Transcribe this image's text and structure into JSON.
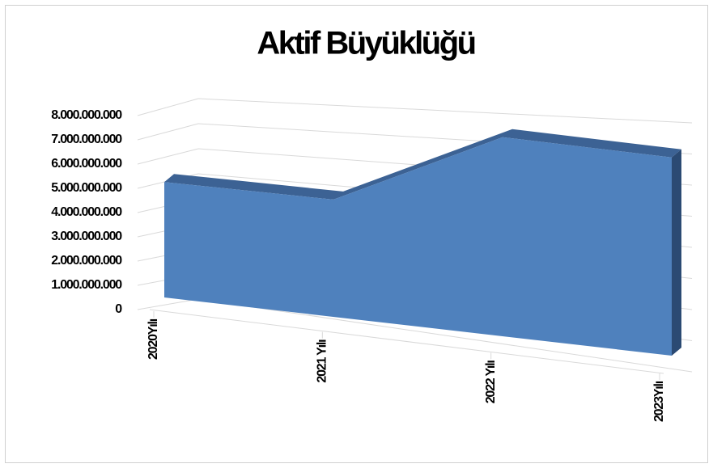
{
  "chart_data": {
    "type": "area3d",
    "title": "Aktif Büyüklüğü",
    "categories": [
      "2020Yılı",
      "2021 Yılı",
      "2022 Yılı",
      "2023Yılı"
    ],
    "values": [
      5100000000,
      4700000000,
      7300000000,
      6700000000
    ],
    "color": "#4f81bd",
    "ylim": [
      0,
      8000000000
    ],
    "yticks": [
      {
        "value": 0,
        "label": "0"
      },
      {
        "value": 1000000000,
        "label": "1.000.000.000"
      },
      {
        "value": 2000000000,
        "label": "2.000.000.000"
      },
      {
        "value": 3000000000,
        "label": "3.000.000.000"
      },
      {
        "value": 4000000000,
        "label": "4.000.000.000"
      },
      {
        "value": 5000000000,
        "label": "5.000.000.000"
      },
      {
        "value": 6000000000,
        "label": "6.000.000.000"
      },
      {
        "value": 7000000000,
        "label": "7.000.000.000"
      },
      {
        "value": 8000000000,
        "label": "8.000.000.000"
      }
    ],
    "grid": true
  }
}
